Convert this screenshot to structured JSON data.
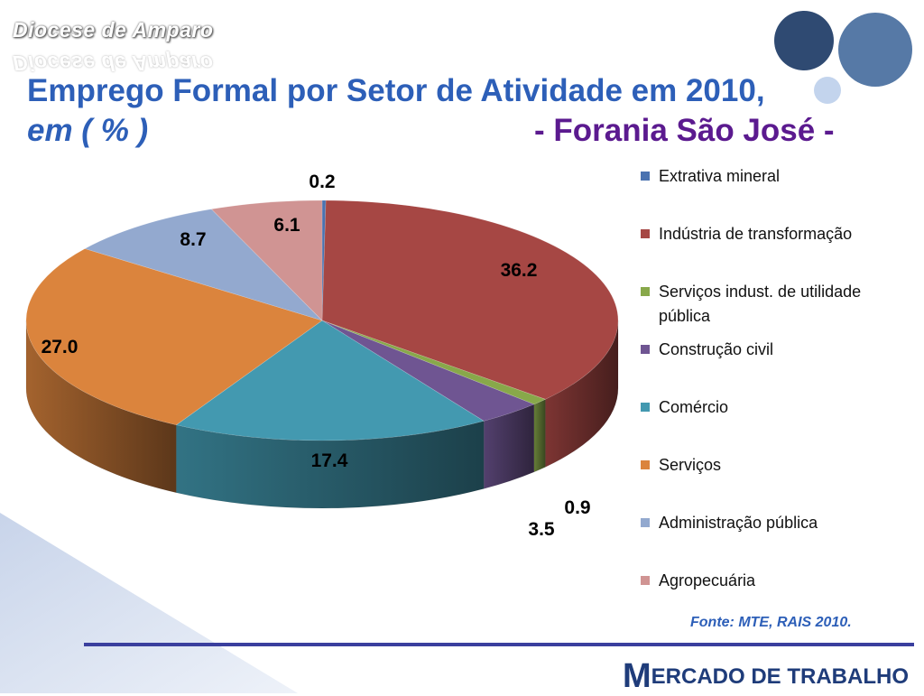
{
  "header": {
    "brand": "Diocese de Amparo",
    "title_line1": "Emprego Formal por Setor de Atividade em 2010,",
    "title_line2": "em ( % )",
    "subtitle": "- Forania São José -"
  },
  "colors": {
    "title": "#2d5fb8",
    "subtitle": "#5b1a8f",
    "rule": "#3a3f9e",
    "footer": "#1f3c7a",
    "decor_circle_dark": "#2f4a72",
    "decor_circle_light": "#5679a6"
  },
  "chart_data": {
    "type": "pie",
    "style": "3d",
    "title": "",
    "legend_position": "right",
    "slices": [
      {
        "label": "Extrativa mineral",
        "value": 0.2,
        "color": "#4a72b0"
      },
      {
        "label": "Indústria de transformação",
        "value": 36.2,
        "color": "#a64744"
      },
      {
        "label": "Serviços indust. de utilidade pública",
        "value": 0.9,
        "color": "#88a84a"
      },
      {
        "label": "Construção civil",
        "value": 3.5,
        "color": "#6f5592"
      },
      {
        "label": "Comércio",
        "value": 17.4,
        "color": "#4399b0"
      },
      {
        "label": "Serviços",
        "value": 27.0,
        "color": "#db843d"
      },
      {
        "label": "Administração pública",
        "value": 8.7,
        "color": "#93a9cf"
      },
      {
        "label": "Agropecuária",
        "value": 6.1,
        "color": "#d09493"
      }
    ]
  },
  "source": "Fonte: MTE, RAIS 2010.",
  "footer": {
    "initial": "M",
    "rest": "ERCADO DE TRABALHO"
  }
}
